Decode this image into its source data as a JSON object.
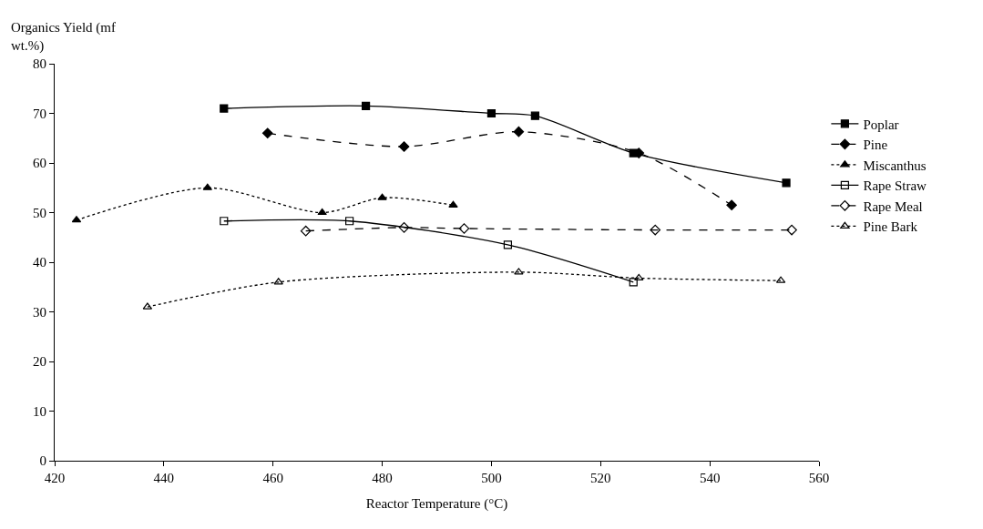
{
  "chart_data": {
    "type": "line",
    "xlabel": "Reactor Temperature (°C)",
    "ylabel": "Organics Yield (mf wt.%)",
    "xlim": [
      420,
      560
    ],
    "xticks": [
      420,
      440,
      460,
      480,
      500,
      520,
      540,
      560
    ],
    "ylim": [
      0,
      80
    ],
    "yticks": [
      0,
      10,
      20,
      30,
      40,
      50,
      60,
      70,
      80
    ],
    "legend": "right",
    "series": [
      {
        "name": "Poplar",
        "color": "#000000",
        "line_style": "solid",
        "marker": "square",
        "x": [
          451,
          477,
          500,
          508,
          526,
          554
        ],
        "values": [
          71,
          71.5,
          70,
          69.5,
          62,
          56
        ]
      },
      {
        "name": "Pine",
        "color": "#000000",
        "line_style": "dashed",
        "marker": "diamond",
        "x": [
          459,
          484,
          505,
          527,
          544
        ],
        "values": [
          66,
          63.3,
          66.3,
          62,
          51.5
        ]
      },
      {
        "name": "Miscanthus",
        "color": "#000000",
        "line_style": "dotted",
        "marker": "triangle",
        "x": [
          424,
          448,
          469,
          480,
          493
        ],
        "values": [
          48.5,
          55,
          50,
          53,
          51.5
        ]
      },
      {
        "name": "Rape Straw",
        "color": "#000000",
        "line_style": "solid",
        "marker": "square",
        "x": [
          451,
          474,
          503,
          526
        ],
        "values": [
          48.3,
          48.3,
          43.5,
          36
        ]
      },
      {
        "name": "Rape Meal",
        "color": "#000000",
        "line_style": "dashed",
        "marker": "diamond",
        "x": [
          466,
          484,
          495,
          530,
          555
        ],
        "values": [
          46.3,
          47,
          46.8,
          46.5,
          46.5
        ]
      },
      {
        "name": "Pine Bark",
        "color": "#000000",
        "line_style": "dotted",
        "marker": "triangle",
        "x": [
          437,
          461,
          505,
          527,
          553
        ],
        "values": [
          31,
          36,
          38,
          36.8,
          36.3
        ]
      }
    ]
  }
}
